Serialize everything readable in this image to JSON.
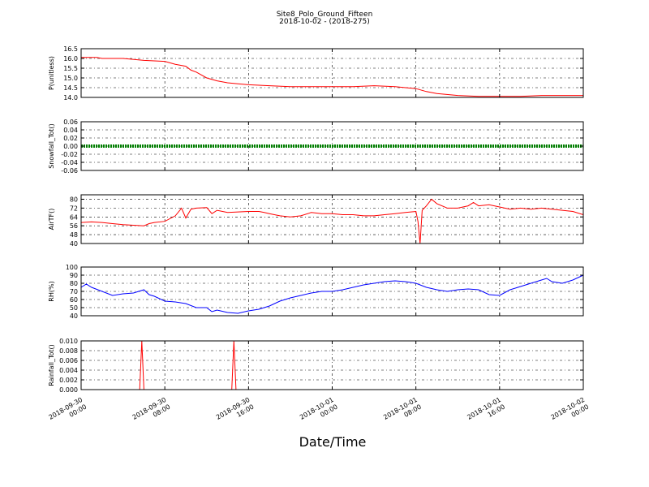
{
  "chart_data": {
    "title": "Site8_Polo_Ground_Fifteen",
    "subtitle": "2018-10-02 - (2018-275)",
    "xlabel": "Date/Time",
    "type": "line",
    "grid": true,
    "x_ticks": [
      {
        "line1": "2018-09-30",
        "line2": "00:00",
        "h": 0
      },
      {
        "line1": "2018-09-30",
        "line2": "08:00",
        "h": 8
      },
      {
        "line1": "2018-09-30",
        "line2": "16:00",
        "h": 16
      },
      {
        "line1": "2018-10-01",
        "line2": "00:00",
        "h": 24
      },
      {
        "line1": "2018-10-01",
        "line2": "08:00",
        "h": 32
      },
      {
        "line1": "2018-10-01",
        "line2": "16:00",
        "h": 40
      },
      {
        "line1": "2018-10-02",
        "line2": "00:00",
        "h": 48
      }
    ],
    "xlim_hours": [
      0,
      48
    ],
    "panels": [
      {
        "ylabel": "P(unitless)",
        "ylim": [
          14.0,
          16.5
        ],
        "ticks": [
          "14.0",
          "14.5",
          "15.0",
          "15.5",
          "16.0",
          "16.5"
        ],
        "tick_values": [
          14.0,
          14.5,
          15.0,
          15.5,
          16.0,
          16.5
        ],
        "color": "#ff0000",
        "series": [
          [
            0,
            16.05
          ],
          [
            1.5,
            16.05
          ],
          [
            2,
            16.0
          ],
          [
            4,
            16.0
          ],
          [
            6,
            15.9
          ],
          [
            8,
            15.85
          ],
          [
            9,
            15.7
          ],
          [
            10,
            15.6
          ],
          [
            10.5,
            15.4
          ],
          [
            11,
            15.3
          ],
          [
            12,
            15.0
          ],
          [
            13,
            14.85
          ],
          [
            14,
            14.75
          ],
          [
            15,
            14.7
          ],
          [
            16,
            14.65
          ],
          [
            18,
            14.6
          ],
          [
            20,
            14.55
          ],
          [
            22,
            14.55
          ],
          [
            24,
            14.55
          ],
          [
            26,
            14.55
          ],
          [
            28,
            14.6
          ],
          [
            30,
            14.55
          ],
          [
            31,
            14.5
          ],
          [
            32,
            14.45
          ],
          [
            33,
            14.3
          ],
          [
            34,
            14.2
          ],
          [
            36,
            14.1
          ],
          [
            38,
            14.05
          ],
          [
            40,
            14.05
          ],
          [
            42,
            14.05
          ],
          [
            44,
            14.1
          ],
          [
            46,
            14.1
          ],
          [
            48,
            14.1
          ]
        ]
      },
      {
        "ylabel": "Snowfall_Tot()",
        "ylim": [
          -0.06,
          0.06
        ],
        "ticks": [
          "-0.06",
          "-0.04",
          "-0.02",
          "0.00",
          "0.02",
          "0.04",
          "0.06"
        ],
        "tick_values": [
          -0.06,
          -0.04,
          -0.02,
          0.0,
          0.02,
          0.04,
          0.06
        ],
        "color": "#008000",
        "series": [
          [
            0,
            0
          ],
          [
            48,
            0
          ]
        ]
      },
      {
        "ylabel": "AirTF()",
        "ylim": [
          40,
          84
        ],
        "ticks": [
          "40",
          "48",
          "56",
          "64",
          "72",
          "80"
        ],
        "tick_values": [
          40,
          48,
          56,
          64,
          72,
          80
        ],
        "color": "#ff0000",
        "series": [
          [
            0,
            59
          ],
          [
            1,
            59.5
          ],
          [
            2,
            59
          ],
          [
            3,
            58
          ],
          [
            4,
            57
          ],
          [
            5,
            56.5
          ],
          [
            6,
            56
          ],
          [
            6.5,
            58
          ],
          [
            7,
            59
          ],
          [
            8,
            60
          ],
          [
            9,
            65
          ],
          [
            9.6,
            72
          ],
          [
            10,
            63
          ],
          [
            10.5,
            71
          ],
          [
            11,
            72
          ],
          [
            12,
            72.5
          ],
          [
            12.5,
            67
          ],
          [
            13,
            70
          ],
          [
            14,
            68
          ],
          [
            15,
            68.5
          ],
          [
            16,
            69
          ],
          [
            17,
            69
          ],
          [
            17.5,
            68
          ],
          [
            18,
            67
          ],
          [
            19,
            65
          ],
          [
            20,
            64
          ],
          [
            21,
            65
          ],
          [
            22,
            68
          ],
          [
            23,
            67
          ],
          [
            24,
            67
          ],
          [
            25,
            66
          ],
          [
            26,
            66
          ],
          [
            27,
            65
          ],
          [
            28,
            65
          ],
          [
            29,
            66
          ],
          [
            30,
            67
          ],
          [
            31,
            68
          ],
          [
            32,
            69
          ],
          [
            32.2,
            60
          ],
          [
            32.4,
            40
          ],
          [
            32.6,
            70
          ],
          [
            33,
            74
          ],
          [
            33.5,
            80
          ],
          [
            34,
            76
          ],
          [
            35,
            72
          ],
          [
            36,
            72
          ],
          [
            37,
            74
          ],
          [
            37.5,
            77
          ],
          [
            38,
            74
          ],
          [
            39,
            75
          ],
          [
            40,
            73
          ],
          [
            41,
            71
          ],
          [
            42,
            72
          ],
          [
            43,
            71
          ],
          [
            44,
            72
          ],
          [
            45,
            71
          ],
          [
            46,
            70
          ],
          [
            47,
            69
          ],
          [
            48,
            66
          ]
        ]
      },
      {
        "ylabel": "RH(%)",
        "ylim": [
          40,
          100
        ],
        "ticks": [
          "40",
          "50",
          "60",
          "70",
          "80",
          "90",
          "100"
        ],
        "tick_values": [
          40,
          50,
          60,
          70,
          80,
          90,
          100
        ],
        "color": "#0000ff",
        "series": [
          [
            0,
            75
          ],
          [
            0.5,
            79
          ],
          [
            1,
            75
          ],
          [
            2,
            70
          ],
          [
            3,
            65
          ],
          [
            4,
            67
          ],
          [
            5,
            68
          ],
          [
            6,
            72
          ],
          [
            6.5,
            66
          ],
          [
            7,
            64
          ],
          [
            8,
            58
          ],
          [
            9,
            57
          ],
          [
            10,
            55
          ],
          [
            11,
            50
          ],
          [
            12,
            50
          ],
          [
            12.5,
            45
          ],
          [
            13,
            47
          ],
          [
            14,
            44
          ],
          [
            15,
            43
          ],
          [
            16,
            46
          ],
          [
            17,
            48
          ],
          [
            18,
            52
          ],
          [
            19,
            58
          ],
          [
            20,
            62
          ],
          [
            21,
            65
          ],
          [
            22,
            68
          ],
          [
            23,
            70
          ],
          [
            24,
            70
          ],
          [
            25,
            72
          ],
          [
            26,
            75
          ],
          [
            27,
            78
          ],
          [
            28,
            80
          ],
          [
            29,
            82
          ],
          [
            30,
            83
          ],
          [
            31,
            82
          ],
          [
            32,
            80
          ],
          [
            33,
            75
          ],
          [
            34,
            72
          ],
          [
            35,
            70
          ],
          [
            36,
            72
          ],
          [
            37,
            73
          ],
          [
            38,
            72
          ],
          [
            39,
            66
          ],
          [
            40,
            65
          ],
          [
            41,
            72
          ],
          [
            42,
            76
          ],
          [
            43,
            80
          ],
          [
            44,
            84
          ],
          [
            44.5,
            86
          ],
          [
            45,
            82
          ],
          [
            46,
            80
          ],
          [
            47,
            84
          ],
          [
            48,
            90
          ]
        ]
      },
      {
        "ylabel": "Rainfall_Tot()",
        "ylim": [
          0,
          0.01
        ],
        "ticks": [
          "0.000",
          "0.002",
          "0.004",
          "0.006",
          "0.008",
          "0.010"
        ],
        "tick_values": [
          0,
          0.002,
          0.004,
          0.006,
          0.008,
          0.01
        ],
        "color": "#ff0000",
        "series": [
          [
            0,
            0
          ],
          [
            5.6,
            0
          ],
          [
            5.8,
            0.01
          ],
          [
            6.0,
            0
          ],
          [
            14.4,
            0
          ],
          [
            14.6,
            0.01
          ],
          [
            14.8,
            0
          ],
          [
            48,
            0
          ]
        ]
      }
    ]
  }
}
